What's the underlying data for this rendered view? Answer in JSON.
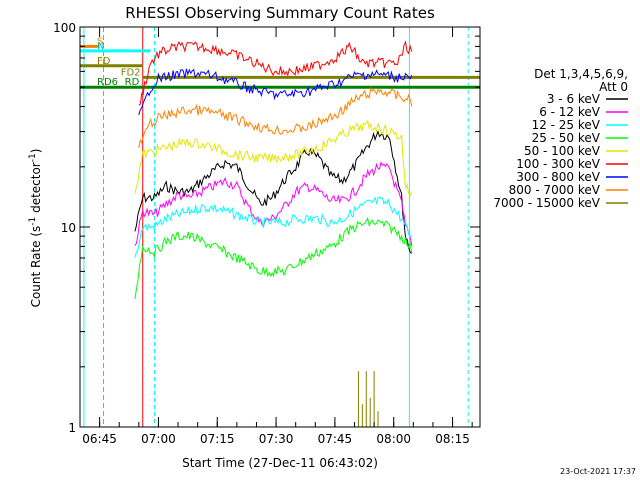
{
  "chart_data": {
    "type": "line",
    "title": "RHESSI Observing Summary Count Rates",
    "xlabel": "Start Time (27-Dec-11 06:43:02)",
    "ylabel_main": "Count Rate (s",
    "ylabel_sup": "-1",
    "ylabel_rest": " detector",
    "ylabel_end": ")",
    "y_scale": "log",
    "ylim": [
      1,
      100
    ],
    "xlim": [
      "06:40",
      "08:22"
    ],
    "y_ticks": [
      "1",
      "10",
      "100"
    ],
    "x_ticks": [
      "06:45",
      "07:00",
      "07:15",
      "07:30",
      "07:45",
      "08:00",
      "08:15"
    ],
    "timestamp": "23-Oct-2021 17:37",
    "legend": {
      "header1": "Det 1,3,4,5,6,9,",
      "header2": "Att 0",
      "placement": "right"
    },
    "series": [
      {
        "name": "3 - 6 keV",
        "color": "#000000",
        "x": [
          "06:54",
          "06:56",
          "06:59",
          "07:02",
          "07:05",
          "07:08",
          "07:11",
          "07:14",
          "07:17",
          "07:20",
          "07:23",
          "07:26",
          "07:29",
          "07:32",
          "07:35",
          "07:38",
          "07:41",
          "07:44",
          "07:47",
          "07:50",
          "07:53",
          "07:56",
          "07:59",
          "08:02",
          "08:03",
          "08:05"
        ],
        "values": [
          9.5,
          14,
          14,
          16,
          15,
          15,
          17,
          19,
          21,
          20,
          16,
          13,
          14,
          17,
          20,
          24,
          22,
          18,
          17,
          20,
          25,
          30,
          28,
          14,
          9,
          7
        ]
      },
      {
        "name": "6 - 12 keV",
        "color": "#ff00ff",
        "x": [
          "06:54",
          "06:56",
          "06:59",
          "07:02",
          "07:05",
          "07:08",
          "07:11",
          "07:14",
          "07:17",
          "07:20",
          "07:23",
          "07:26",
          "07:29",
          "07:32",
          "07:35",
          "07:38",
          "07:41",
          "07:44",
          "07:47",
          "07:50",
          "07:53",
          "07:56",
          "07:59",
          "08:02",
          "08:03",
          "08:05"
        ],
        "values": [
          8,
          12,
          11.5,
          13,
          14.5,
          14,
          15,
          16,
          17,
          16,
          12.5,
          10.5,
          11,
          12.5,
          15,
          16,
          15,
          13.5,
          13.5,
          15,
          18,
          20,
          19.5,
          13,
          10,
          8
        ]
      },
      {
        "name": "12 - 25 keV",
        "color": "#00ffff",
        "x": [
          "06:54",
          "06:56",
          "06:59",
          "07:02",
          "07:05",
          "07:08",
          "07:11",
          "07:14",
          "07:17",
          "07:20",
          "07:23",
          "07:26",
          "07:29",
          "07:32",
          "07:35",
          "07:38",
          "07:41",
          "07:44",
          "07:47",
          "07:50",
          "07:53",
          "07:56",
          "07:59",
          "08:02",
          "08:03",
          "08:05"
        ],
        "values": [
          7,
          10,
          10,
          11,
          11.5,
          12,
          12.5,
          12.5,
          12,
          11.5,
          11,
          10.5,
          10.5,
          10.5,
          11,
          11,
          11,
          10.5,
          11,
          12,
          13,
          13.5,
          13,
          11,
          10,
          8.5
        ]
      },
      {
        "name": "25 - 50 keV",
        "color": "#00ff00",
        "x": [
          "06:54",
          "06:56",
          "06:59",
          "07:02",
          "07:05",
          "07:08",
          "07:11",
          "07:14",
          "07:17",
          "07:20",
          "07:23",
          "07:26",
          "07:29",
          "07:32",
          "07:35",
          "07:38",
          "07:41",
          "07:44",
          "07:47",
          "07:50",
          "07:53",
          "07:56",
          "07:59",
          "08:02",
          "08:03",
          "08:05"
        ],
        "values": [
          4.5,
          8,
          7.5,
          8.5,
          9,
          9,
          8.5,
          8,
          7.5,
          7,
          6.5,
          6,
          6,
          6,
          6.5,
          7,
          7.5,
          8,
          9,
          10,
          10.5,
          10.5,
          10,
          9,
          8.5,
          7.5
        ]
      },
      {
        "name": "50 - 100 keV",
        "color": "#e6e600",
        "x": [
          "06:54",
          "06:56",
          "06:59",
          "07:02",
          "07:05",
          "07:08",
          "07:11",
          "07:14",
          "07:17",
          "07:20",
          "07:23",
          "07:26",
          "07:29",
          "07:32",
          "07:35",
          "07:38",
          "07:41",
          "07:44",
          "07:47",
          "07:50",
          "07:53",
          "07:56",
          "07:59",
          "08:02",
          "08:03",
          "08:05"
        ],
        "values": [
          15,
          23,
          24,
          25,
          26,
          26.5,
          26,
          25,
          24,
          23,
          22.5,
          22,
          22,
          22.5,
          23,
          24,
          25,
          27,
          29,
          31,
          32,
          31.5,
          30,
          28,
          16,
          14
        ]
      },
      {
        "name": "100 - 300 keV",
        "color": "#ff0000",
        "x": [
          "06:55",
          "06:58",
          "07:00",
          "07:03",
          "07:06",
          "07:09",
          "07:12",
          "07:15",
          "07:18",
          "07:21",
          "07:24",
          "07:27",
          "07:30",
          "07:33",
          "07:36",
          "07:39",
          "07:42",
          "07:45",
          "07:48",
          "07:49",
          "07:52",
          "07:55",
          "07:58",
          "08:01",
          "08:03",
          "08:05"
        ],
        "values": [
          40,
          66,
          73,
          78,
          80,
          80,
          79,
          77,
          74,
          71,
          67,
          63,
          60,
          60,
          61,
          63,
          66,
          70,
          77,
          80,
          66,
          66,
          66,
          66,
          80,
          75
        ]
      },
      {
        "name": "300 - 800 keV",
        "color": "#0000ff",
        "x": [
          "06:55",
          "06:58",
          "07:00",
          "07:03",
          "07:06",
          "07:09",
          "07:12",
          "07:15",
          "07:18",
          "07:21",
          "07:24",
          "07:27",
          "07:30",
          "07:33",
          "07:36",
          "07:39",
          "07:42",
          "07:45",
          "07:48",
          "07:50",
          "07:53",
          "07:56",
          "07:59",
          "08:01",
          "08:03",
          "08:05"
        ],
        "values": [
          35,
          50,
          55,
          57,
          58,
          59,
          58,
          56,
          54,
          51,
          49,
          47,
          46,
          46,
          47,
          48,
          50,
          52,
          55,
          57,
          58,
          58,
          57,
          56,
          57,
          55
        ]
      },
      {
        "name": "800 - 7000 keV",
        "color": "#ff8000",
        "x": [
          "06:55",
          "06:58",
          "07:00",
          "07:03",
          "07:06",
          "07:09",
          "07:12",
          "07:15",
          "07:18",
          "07:21",
          "07:24",
          "07:27",
          "07:30",
          "07:33",
          "07:36",
          "07:39",
          "07:42",
          "07:45",
          "07:48",
          "07:50",
          "07:53",
          "07:56",
          "07:59",
          "08:01",
          "08:03",
          "08:05"
        ],
        "values": [
          25,
          33,
          35,
          36.5,
          38,
          38.5,
          38,
          37,
          35.5,
          34,
          32.5,
          31,
          30.5,
          30.5,
          31,
          32,
          34,
          36,
          40,
          43,
          46,
          48,
          47,
          45,
          44,
          42
        ]
      },
      {
        "name": "7000 - 15000 keV",
        "color": "#808000",
        "x": [
          "07:51",
          "07:52",
          "07:53",
          "07:54",
          "07:55",
          "07:56"
        ],
        "values": [
          1.9,
          1.3,
          1.9,
          1.4,
          1.9,
          1.2
        ]
      }
    ],
    "flags": [
      {
        "label": "S",
        "color": "#ff8000",
        "x1": "06:40",
        "x2": "06:45",
        "y": 80
      },
      {
        "label": "N",
        "color": "#00ffff",
        "x1": "06:40",
        "x2": "06:58",
        "y": 76
      },
      {
        "label": "FD",
        "color": "#808000",
        "x1": "06:40",
        "x2": "06:56",
        "y": 64
      },
      {
        "label": "FD2",
        "color": "#808000",
        "x1": "06:56",
        "x2": "08:22",
        "y": 56
      },
      {
        "label": "RD",
        "color": "#008000",
        "x1": "06:57",
        "x2": "08:22",
        "y": 50
      },
      {
        "label": "RD6",
        "color": "#008000",
        "x1": "06:40",
        "x2": "06:57",
        "y": 50
      }
    ]
  }
}
